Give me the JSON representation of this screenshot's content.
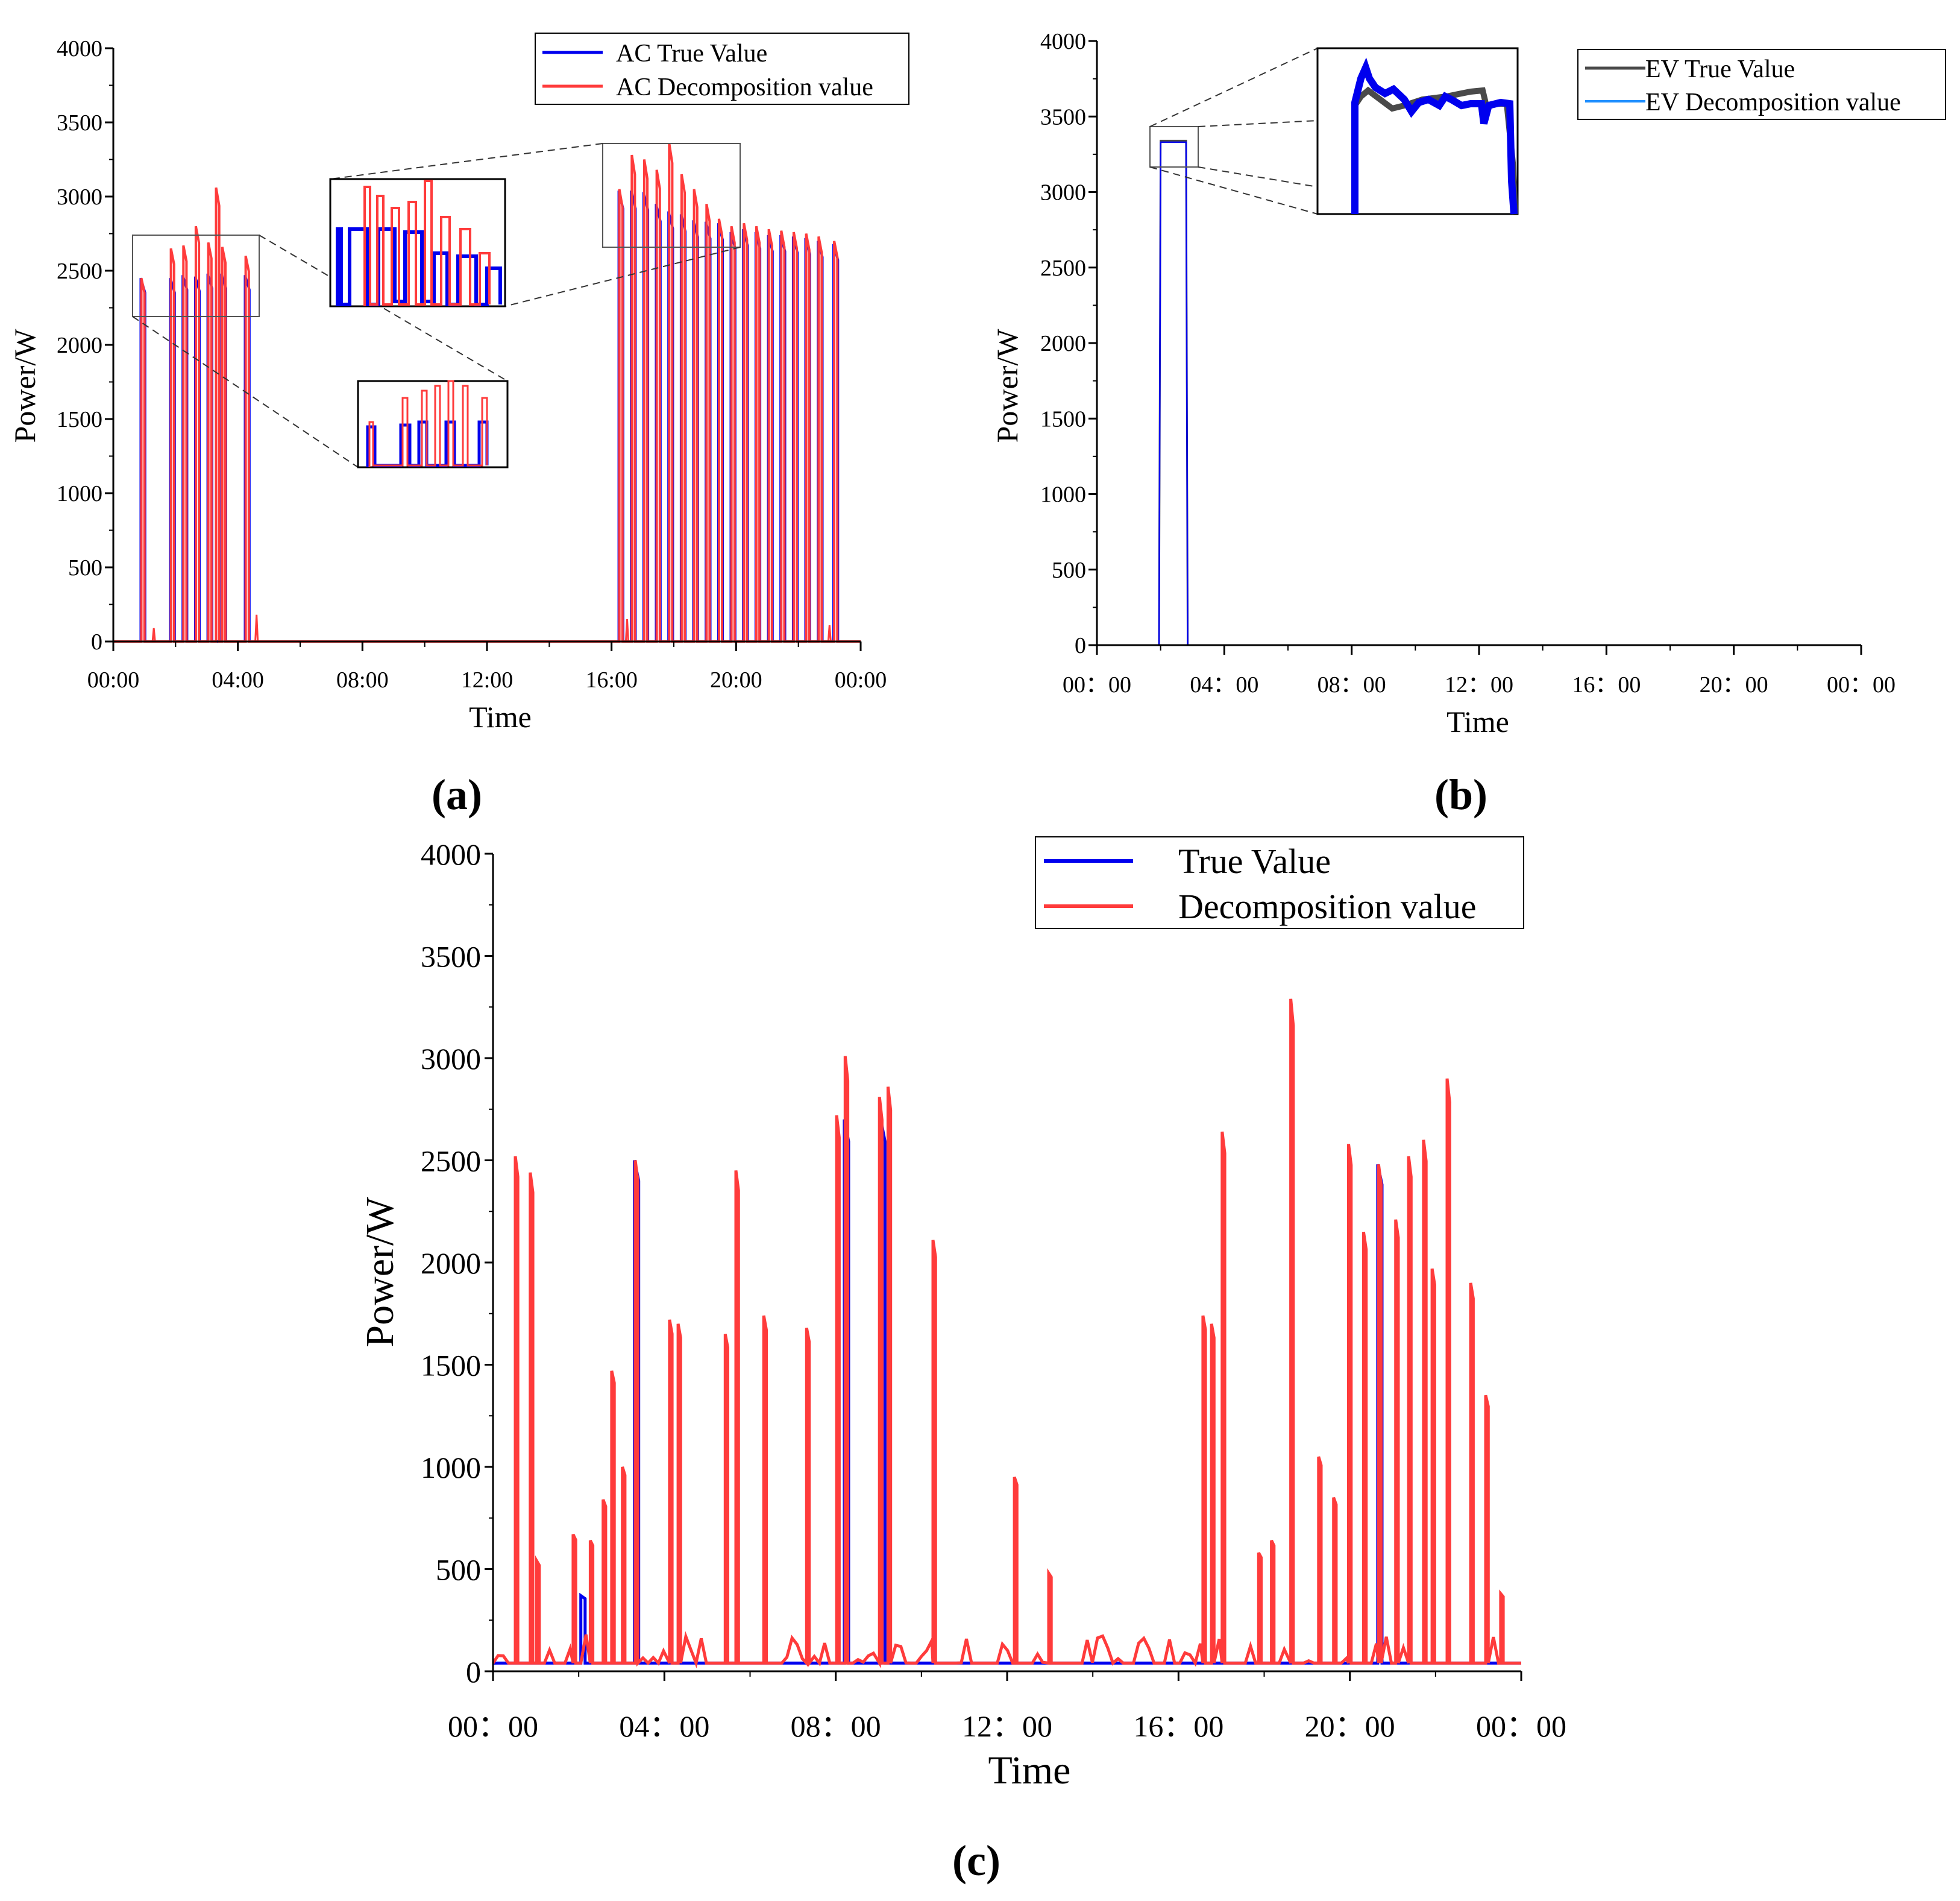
{
  "panels": {
    "a": "(a)",
    "b": "(b)",
    "c": "(c)"
  },
  "chart_data": [
    {
      "id": "a",
      "type": "line",
      "panel_label": "(a)",
      "xlabel": "Time",
      "ylabel": "Power/W",
      "ylim": [
        0,
        4000
      ],
      "xlim": [
        0,
        24
      ],
      "yticks": [
        0,
        500,
        1000,
        1500,
        2000,
        2500,
        3000,
        3500,
        4000
      ],
      "xticks": [
        0,
        4,
        8,
        12,
        16,
        20,
        24
      ],
      "xtick_labels": [
        "00:00",
        "04:00",
        "08:00",
        "12:00",
        "16:00",
        "20:00",
        "00:00"
      ],
      "legend": [
        "AC True Value",
        "AC Decomposition value"
      ],
      "colors": {
        "true": "#0000ee",
        "decomp": "#ff3b3b"
      },
      "series": [
        {
          "name": "AC True Value",
          "peaks": [
            [
              0.95,
              2450
            ],
            [
              1.9,
              2450
            ],
            [
              2.3,
              2470
            ],
            [
              2.7,
              2460
            ],
            [
              3.1,
              2480
            ],
            [
              3.55,
              2480
            ],
            [
              4.3,
              2470
            ],
            [
              16.3,
              3040
            ],
            [
              16.7,
              3040
            ],
            [
              17.1,
              3030
            ],
            [
              17.5,
              2950
            ],
            [
              17.9,
              2900
            ],
            [
              18.3,
              2880
            ],
            [
              18.7,
              2840
            ],
            [
              19.1,
              2830
            ],
            [
              19.5,
              2820
            ],
            [
              19.9,
              2760
            ],
            [
              20.3,
              2780
            ],
            [
              20.7,
              2760
            ],
            [
              21.1,
              2740
            ],
            [
              21.5,
              2740
            ],
            [
              21.9,
              2730
            ],
            [
              22.3,
              2720
            ],
            [
              22.7,
              2700
            ],
            [
              23.2,
              2680
            ]
          ]
        },
        {
          "name": "AC Decomposition value",
          "peaks": [
            [
              0.95,
              2450
            ],
            [
              1.9,
              2650
            ],
            [
              2.3,
              2670
            ],
            [
              2.7,
              2800
            ],
            [
              3.1,
              2690
            ],
            [
              3.35,
              3060
            ],
            [
              3.55,
              2660
            ],
            [
              4.3,
              2600
            ],
            [
              16.3,
              3050
            ],
            [
              16.7,
              3280
            ],
            [
              17.1,
              3250
            ],
            [
              17.5,
              3180
            ],
            [
              17.9,
              3360
            ],
            [
              18.3,
              3150
            ],
            [
              18.7,
              3050
            ],
            [
              19.1,
              2950
            ],
            [
              19.5,
              2850
            ],
            [
              19.9,
              2800
            ],
            [
              20.3,
              2820
            ],
            [
              20.7,
              2800
            ],
            [
              21.1,
              2780
            ],
            [
              21.5,
              2770
            ],
            [
              21.9,
              2760
            ],
            [
              22.3,
              2750
            ],
            [
              22.7,
              2730
            ],
            [
              23.2,
              2700
            ]
          ]
        }
      ]
    },
    {
      "id": "b",
      "type": "line",
      "panel_label": "(b)",
      "xlabel": "Time",
      "ylabel": "Power/W",
      "ylim": [
        0,
        4000
      ],
      "xlim": [
        0,
        24
      ],
      "yticks": [
        0,
        500,
        1000,
        1500,
        2000,
        2500,
        3000,
        3500,
        4000
      ],
      "xticks": [
        0,
        4,
        8,
        12,
        16,
        20,
        24
      ],
      "xtick_labels": [
        "00：00",
        "04：00",
        "08：00",
        "12：00",
        "16：00",
        "20：00",
        "00：00"
      ],
      "legend": [
        "EV True Value",
        "EV Decomposition value"
      ],
      "colors": {
        "true": "#4a4a4a",
        "decomp": "#0000ee"
      },
      "series": [
        {
          "name": "EV True Value",
          "pulse": {
            "start": 1.95,
            "end": 2.85,
            "level": 3340
          }
        },
        {
          "name": "EV Decomposition value",
          "pulse": {
            "start": 1.95,
            "end": 2.85,
            "level": 3330
          }
        }
      ]
    },
    {
      "id": "c",
      "type": "line",
      "panel_label": "(c)",
      "xlabel": "Time",
      "ylabel": "Power/W",
      "ylim": [
        0,
        4000
      ],
      "xlim": [
        0,
        24
      ],
      "yticks": [
        0,
        500,
        1000,
        1500,
        2000,
        2500,
        3000,
        3500,
        4000
      ],
      "xticks": [
        0,
        4,
        8,
        12,
        16,
        20,
        24
      ],
      "xtick_labels": [
        "00：00",
        "04：00",
        "08：00",
        "12：00",
        "16：00",
        "20：00",
        "00：00"
      ],
      "legend": [
        "True Value",
        "Decomposition value"
      ],
      "colors": {
        "true": "#0000ee",
        "decomp": "#ff3b3b"
      },
      "series": [
        {
          "name": "Decomposition value",
          "peaks": [
            [
              0.55,
              2520
            ],
            [
              0.9,
              2440
            ],
            [
              1.05,
              540
            ],
            [
              1.9,
              670
            ],
            [
              2.3,
              640
            ],
            [
              2.6,
              840
            ],
            [
              2.8,
              1470
            ],
            [
              3.05,
              1000
            ],
            [
              3.35,
              2500
            ],
            [
              4.15,
              1720
            ],
            [
              4.35,
              1700
            ],
            [
              5.45,
              1650
            ],
            [
              5.7,
              2450
            ],
            [
              6.35,
              1740
            ],
            [
              7.35,
              1680
            ],
            [
              8.05,
              2720
            ],
            [
              8.25,
              3010
            ],
            [
              9.05,
              2810
            ],
            [
              9.25,
              2860
            ],
            [
              10.3,
              2110
            ],
            [
              12.2,
              950
            ],
            [
              13.0,
              480
            ],
            [
              16.6,
              1740
            ],
            [
              16.8,
              1700
            ],
            [
              17.05,
              2640
            ],
            [
              17.9,
              580
            ],
            [
              18.2,
              640
            ],
            [
              18.65,
              3290
            ],
            [
              19.3,
              1050
            ],
            [
              19.65,
              850
            ],
            [
              20.0,
              2580
            ],
            [
              20.35,
              2150
            ],
            [
              20.7,
              2480
            ],
            [
              21.1,
              2210
            ],
            [
              21.4,
              2520
            ],
            [
              21.75,
              2600
            ],
            [
              21.95,
              1970
            ],
            [
              22.3,
              2900
            ],
            [
              22.85,
              1900
            ],
            [
              23.2,
              1350
            ],
            [
              23.55,
              380
            ]
          ]
        },
        {
          "name": "True Value",
          "peaks": [
            [
              2.1,
              370
            ],
            [
              3.35,
              2500
            ],
            [
              8.25,
              2700
            ],
            [
              9.1,
              2700
            ],
            [
              20.7,
              2480
            ]
          ]
        }
      ]
    }
  ]
}
